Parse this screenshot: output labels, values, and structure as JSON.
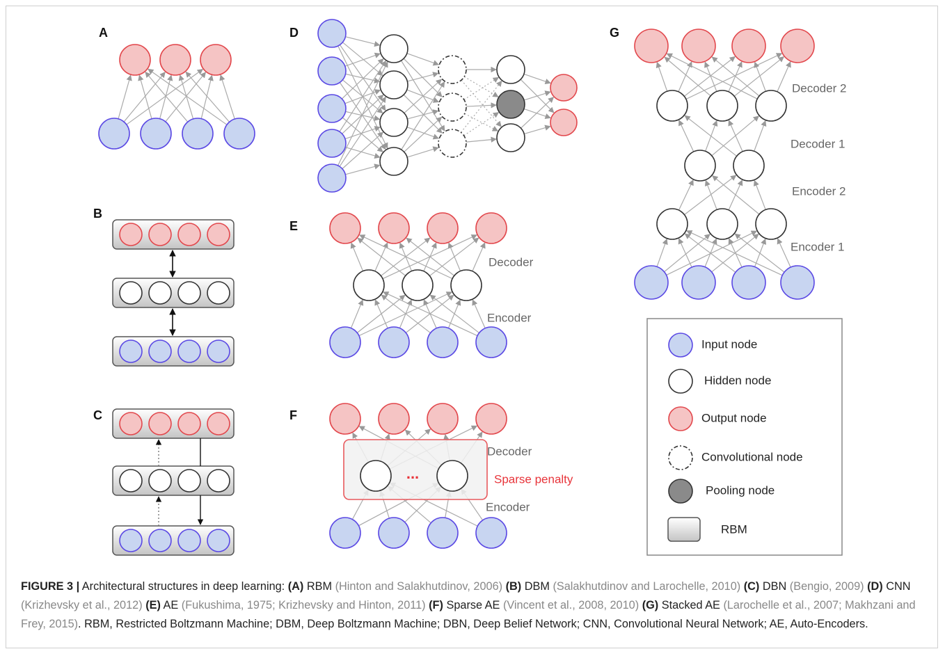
{
  "panels": {
    "a": "A",
    "b": "B",
    "c": "C",
    "d": "D",
    "e": "E",
    "f": "F",
    "g": "G"
  },
  "panel_e": {
    "decoder": "Decoder",
    "encoder": "Encoder"
  },
  "panel_f": {
    "decoder": "Decoder",
    "encoder": "Encoder",
    "penalty": "Sparse penalty",
    "ellipsis": "..."
  },
  "panel_g": {
    "decoder2": "Decoder 2",
    "decoder1": "Decoder 1",
    "encoder2": "Encoder 2",
    "encoder1": "Encoder 1"
  },
  "legend": [
    "Input node",
    "Hidden node",
    "Output node",
    "Convolutional node",
    "Pooling node",
    "RBM"
  ],
  "caption": {
    "figure_label": "FIGURE 3 |",
    "intro": "Architectural structures in deep learning:",
    "items": [
      {
        "tag": "(A)",
        "name": "RBM",
        "refs": "(Hinton and Salakhutdinov, 2006)"
      },
      {
        "tag": "(B)",
        "name": "DBM",
        "refs": "(Salakhutdinov and Larochelle, 2010)"
      },
      {
        "tag": "(C)",
        "name": "DBN",
        "refs": "(Bengio, 2009)"
      },
      {
        "tag": "(D)",
        "name": "CNN",
        "refs": "(Krizhevsky et al., 2012)"
      },
      {
        "tag": "(E)",
        "name": "AE",
        "refs": "(Fukushima, 1975; Krizhevsky and Hinton, 2011)"
      },
      {
        "tag": "(F)",
        "name": "Sparse AE",
        "refs": "(Vincent et al., 2008, 2010)"
      },
      {
        "tag": "(G)",
        "name": "Stacked AE",
        "refs": "(Larochelle et al., 2007; Makhzani and Frey, 2015)"
      }
    ],
    "end": ".",
    "abbreviations": "RBM, Restricted Boltzmann Machine; DBM, Deep Boltzmann Machine; DBN, Deep Belief Network; CNN, Convolutional Neural Network; AE, Auto-Encoders."
  }
}
